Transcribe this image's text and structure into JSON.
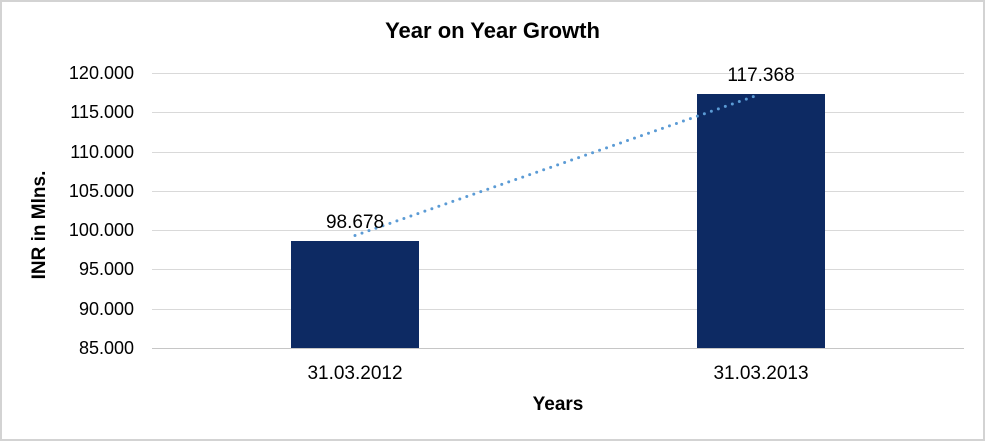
{
  "chart_data": {
    "type": "bar",
    "title": "Year on Year Growth",
    "xlabel": "Years",
    "ylabel": "INR in Mlns.",
    "categories": [
      "31.03.2012",
      "31.03.2013"
    ],
    "series": [
      {
        "name": "INR in Mlns.",
        "values": [
          98.678,
          117.368
        ]
      }
    ],
    "value_labels": [
      "98.678",
      "117.368"
    ],
    "ylim": [
      85,
      120
    ],
    "yticks": [
      {
        "value": 85,
        "label": "85.000"
      },
      {
        "value": 90,
        "label": "90.000"
      },
      {
        "value": 95,
        "label": "95.000"
      },
      {
        "value": 100,
        "label": "100.000"
      },
      {
        "value": 105,
        "label": "105.000"
      },
      {
        "value": 110,
        "label": "110.000"
      },
      {
        "value": 115,
        "label": "115.000"
      },
      {
        "value": 120,
        "label": "120.000"
      }
    ],
    "grid": "horizontal",
    "legend": "none",
    "trendline": {
      "type": "linear",
      "style": "dotted",
      "color": "#5b9bd5"
    },
    "colors": {
      "bar": "#0d2a63",
      "gridline": "#d9d9d9",
      "axis_line": "#c6c6c6",
      "text": "#000000",
      "background": "#ffffff",
      "border": "#d3d3d3"
    }
  }
}
